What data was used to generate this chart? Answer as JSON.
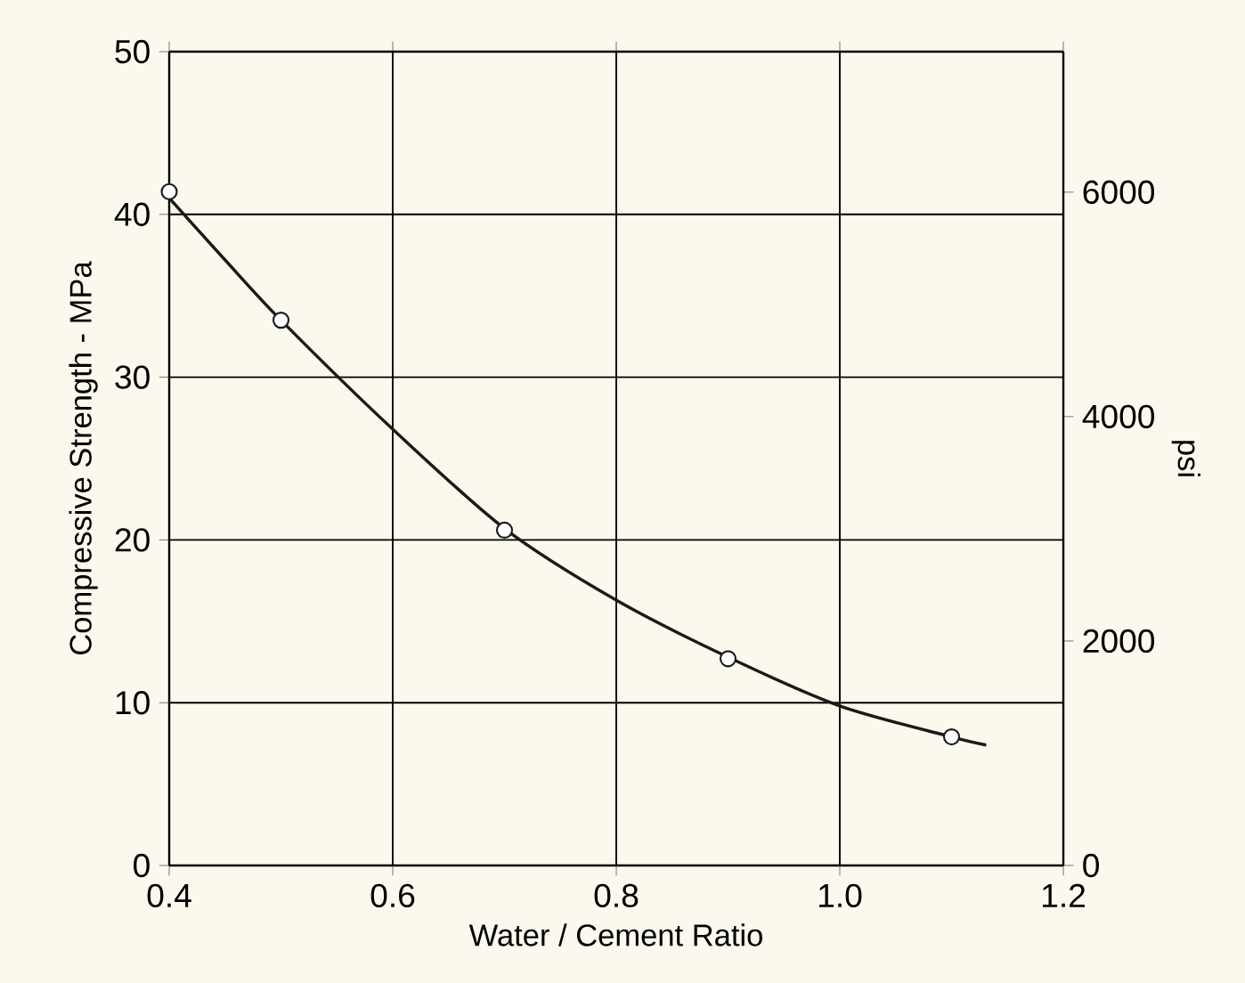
{
  "chart_data": {
    "type": "line",
    "xlabel": "Water / Cement Ratio",
    "ylabel": "Compressive  Strength - MPa",
    "y2label": "psi",
    "xlim": [
      0.4,
      1.2
    ],
    "ylim": [
      0,
      50
    ],
    "y2lim": [
      0,
      7252
    ],
    "xticks": [
      {
        "value": 0.4,
        "label": "0.4"
      },
      {
        "value": 0.6,
        "label": "0.6"
      },
      {
        "value": 0.8,
        "label": "0.8"
      },
      {
        "value": 1.0,
        "label": "1.0"
      },
      {
        "value": 1.2,
        "label": "1.2"
      }
    ],
    "yticks": [
      0,
      10,
      20,
      30,
      40,
      50
    ],
    "y2ticks": [
      0,
      2000,
      4000,
      6000
    ],
    "grid": true,
    "series": [
      {
        "color": "#1a1a1a",
        "marker": "none",
        "line_style": "solid",
        "x": [
          0.4,
          0.45,
          0.5,
          0.6,
          0.7,
          0.8,
          0.9,
          1.0,
          1.1,
          1.131
        ],
        "values": [
          41.0,
          37.2,
          33.5,
          26.8,
          20.7,
          16.3,
          12.8,
          9.8,
          7.9,
          7.4
        ]
      },
      {
        "type": "scatter",
        "color": "#1a1a1a",
        "marker": "circle",
        "x": [
          0.4,
          0.5,
          0.7,
          0.9,
          1.1
        ],
        "values": [
          41.4,
          33.5,
          20.6,
          12.7,
          7.9
        ]
      }
    ]
  }
}
